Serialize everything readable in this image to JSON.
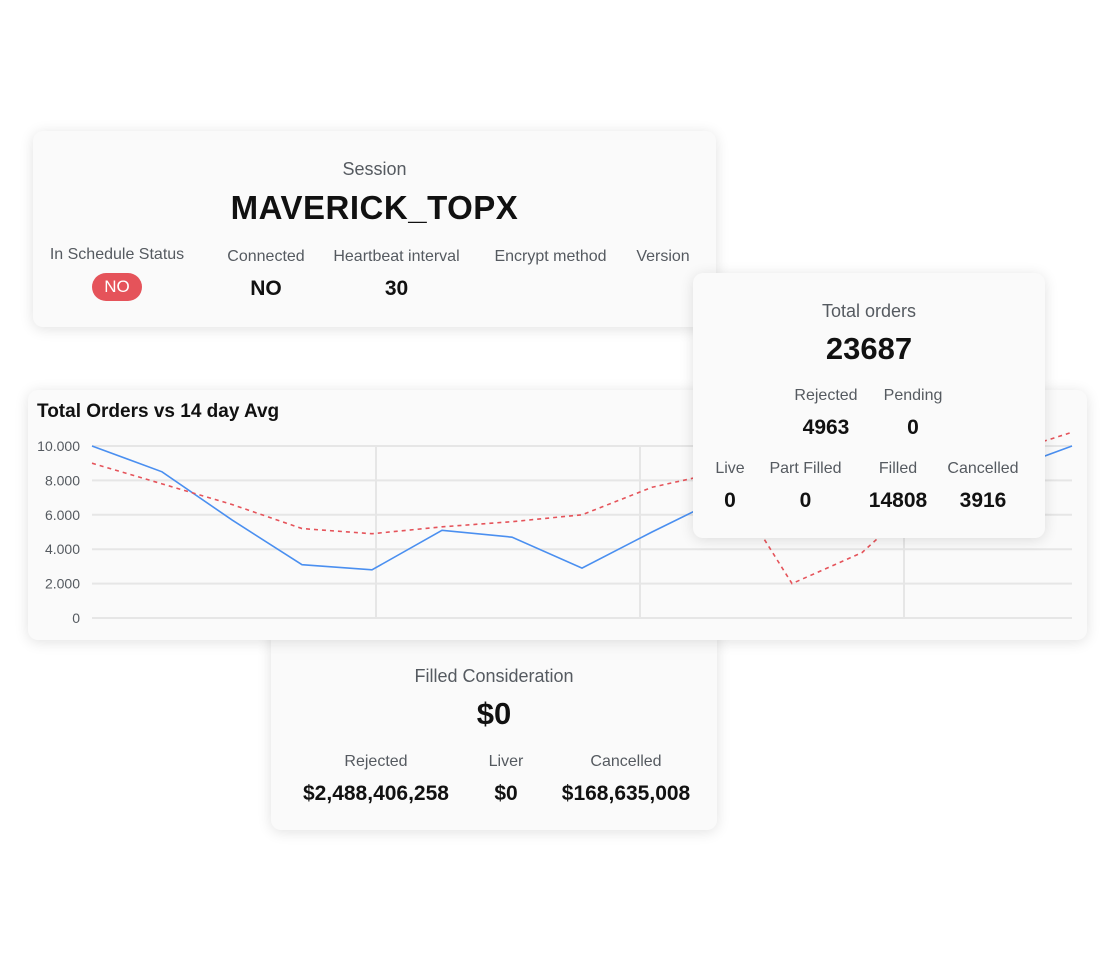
{
  "session": {
    "label": "Session",
    "name": "MAVERICK_TOPX",
    "fields": [
      {
        "label": "In Schedule Status",
        "value": "NO"
      },
      {
        "label": "Connected",
        "value": "NO"
      },
      {
        "label": "Heartbeat interval",
        "value": "30"
      },
      {
        "label": "Encrypt method",
        "value": ""
      },
      {
        "label": "Version",
        "value": ""
      }
    ],
    "badge_color": "#e5535a"
  },
  "orders": {
    "label": "Total orders",
    "total": "23687",
    "row1": [
      {
        "label": "Rejected",
        "value": "4963"
      },
      {
        "label": "Pending",
        "value": "0"
      }
    ],
    "row2": [
      {
        "label": "Live",
        "value": "0"
      },
      {
        "label": "Part Filled",
        "value": "0"
      },
      {
        "label": "Filled",
        "value": "14808"
      },
      {
        "label": "Cancelled",
        "value": "3916"
      }
    ]
  },
  "filled": {
    "label": "Filled Consideration",
    "total": "$0",
    "fields": [
      {
        "label": "Rejected",
        "value": "$2,488,406,258"
      },
      {
        "label": "Liver",
        "value": "$0"
      },
      {
        "label": "Cancelled",
        "value": "$168,635,008"
      }
    ]
  },
  "chart_data": {
    "type": "line",
    "title": "Total Orders vs 14 day Avg",
    "ylim": [
      0,
      10000
    ],
    "yticks": [
      "0",
      "2.000",
      "4.000",
      "6.000",
      "8.000",
      "10.000"
    ],
    "grid": true,
    "x": [
      0,
      1,
      2,
      3,
      4,
      5,
      6,
      7,
      8,
      9,
      10,
      11,
      12,
      13,
      14
    ],
    "series": [
      {
        "color": "#4a8ff0",
        "style": "solid",
        "values": [
          10000,
          8500,
          5700,
          3100,
          2800,
          5100,
          4700,
          2900,
          5000,
          7000,
          7500,
          6500,
          7800,
          8500,
          10000
        ]
      },
      {
        "color": "#e5535a",
        "style": "dashed",
        "values": [
          9000,
          7800,
          6600,
          5200,
          4900,
          5300,
          5600,
          6000,
          7600,
          8500,
          2000,
          3800,
          7500,
          9500,
          10800
        ]
      }
    ]
  }
}
